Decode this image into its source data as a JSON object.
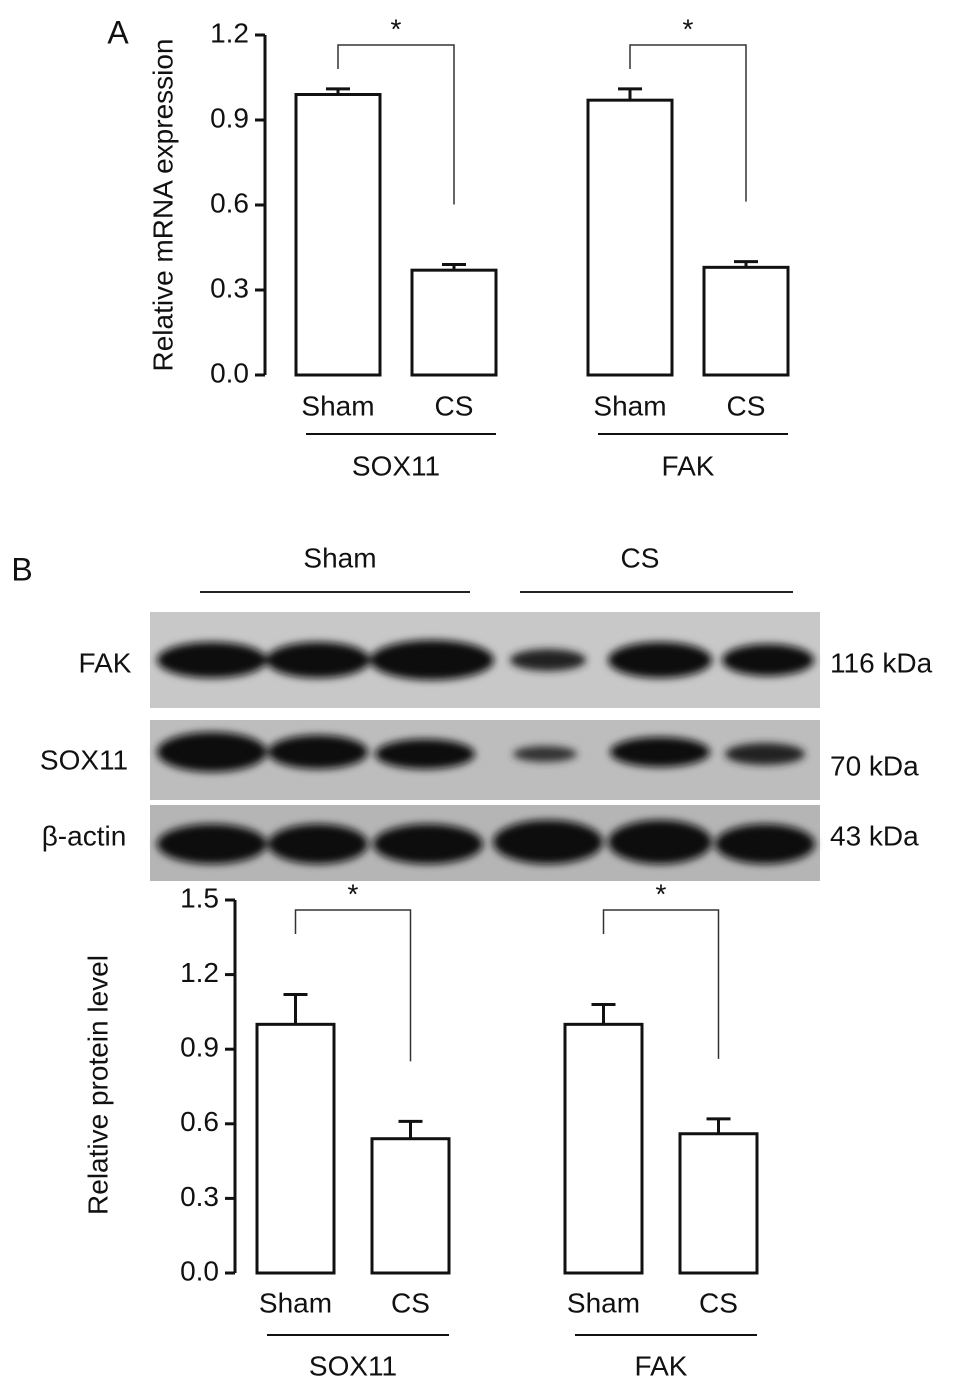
{
  "panels": [
    "A",
    "B"
  ],
  "blot": {
    "groups": [
      "Sham",
      "CS"
    ],
    "rows": [
      {
        "label": "FAK",
        "size": "116 kDa"
      },
      {
        "label": "SOX11",
        "size": "70 kDa"
      },
      {
        "label": "β-actin",
        "size": "43 kDa"
      }
    ]
  },
  "chart_data": [
    {
      "type": "bar",
      "y_label": "Relative mRNA expression",
      "categories": [
        "Sham",
        "CS",
        "Sham",
        "CS"
      ],
      "groups": [
        "SOX11",
        "FAK"
      ],
      "values": [
        0.99,
        0.37,
        0.97,
        0.38
      ],
      "errors": [
        0.02,
        0.02,
        0.04,
        0.02
      ],
      "significance": [
        "*",
        "*"
      ],
      "color": "#ffffff",
      "ylim": [
        0,
        1.2
      ],
      "yticks": [
        {
          "value": 0,
          "label": "0.0"
        },
        0.3,
        0.6,
        0.9,
        1.2
      ]
    },
    {
      "type": "bar",
      "y_label": "Relative protein level",
      "categories": [
        "Sham",
        "CS",
        "Sham",
        "CS"
      ],
      "groups": [
        "SOX11",
        "FAK"
      ],
      "values": [
        1.0,
        0.54,
        1.0,
        0.56
      ],
      "errors": [
        0.12,
        0.07,
        0.08,
        0.06
      ],
      "significance": [
        "*",
        "*"
      ],
      "color": "#ffffff",
      "ylim": [
        0,
        1.5
      ],
      "yticks": [
        {
          "value": 0,
          "label": "0.0"
        },
        0.3,
        0.6,
        0.9,
        1.2,
        1.5
      ]
    }
  ]
}
